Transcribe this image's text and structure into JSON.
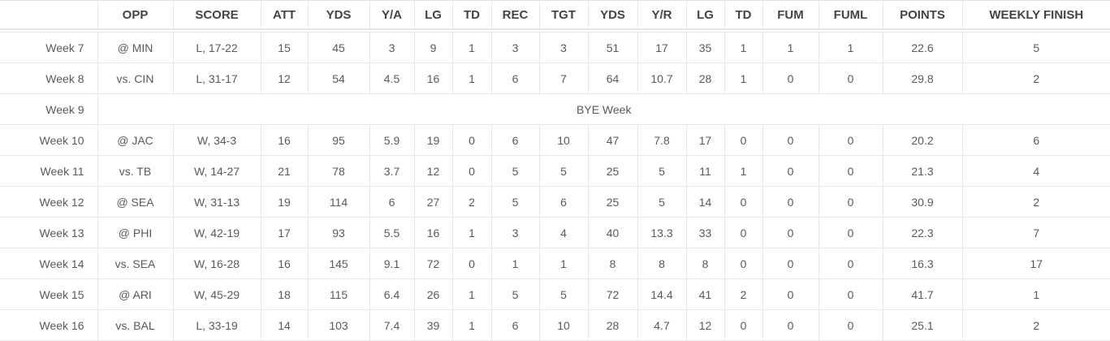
{
  "table": {
    "columns": [
      "",
      "OPP",
      "SCORE",
      "ATT",
      "YDS",
      "Y/A",
      "LG",
      "TD",
      "REC",
      "TGT",
      "YDS",
      "Y/R",
      "LG",
      "TD",
      "FUM",
      "FUML",
      "POINTS",
      "WEEKLY FINISH"
    ],
    "rows": [
      {
        "week": "Week 7",
        "cells": [
          "@ MIN",
          "L, 17-22",
          "15",
          "45",
          "3",
          "9",
          "1",
          "3",
          "3",
          "51",
          "17",
          "35",
          "1",
          "1",
          "1",
          "22.6",
          "5"
        ]
      },
      {
        "week": "Week 8",
        "cells": [
          "vs. CIN",
          "L, 31-17",
          "12",
          "54",
          "4.5",
          "16",
          "1",
          "6",
          "7",
          "64",
          "10.7",
          "28",
          "1",
          "0",
          "0",
          "29.8",
          "2"
        ]
      },
      {
        "week": "Week 9",
        "bye": "BYE Week"
      },
      {
        "week": "Week 10",
        "cells": [
          "@ JAC",
          "W, 34-3",
          "16",
          "95",
          "5.9",
          "19",
          "0",
          "6",
          "10",
          "47",
          "7.8",
          "17",
          "0",
          "0",
          "0",
          "20.2",
          "6"
        ]
      },
      {
        "week": "Week 11",
        "cells": [
          "vs. TB",
          "W, 14-27",
          "21",
          "78",
          "3.7",
          "12",
          "0",
          "5",
          "5",
          "25",
          "5",
          "11",
          "1",
          "0",
          "0",
          "21.3",
          "4"
        ]
      },
      {
        "week": "Week 12",
        "cells": [
          "@ SEA",
          "W, 31-13",
          "19",
          "114",
          "6",
          "27",
          "2",
          "5",
          "6",
          "25",
          "5",
          "14",
          "0",
          "0",
          "0",
          "30.9",
          "2"
        ]
      },
      {
        "week": "Week 13",
        "cells": [
          "@ PHI",
          "W, 42-19",
          "17",
          "93",
          "5.5",
          "16",
          "1",
          "3",
          "4",
          "40",
          "13.3",
          "33",
          "0",
          "0",
          "0",
          "22.3",
          "7"
        ]
      },
      {
        "week": "Week 14",
        "cells": [
          "vs. SEA",
          "W, 16-28",
          "16",
          "145",
          "9.1",
          "72",
          "0",
          "1",
          "1",
          "8",
          "8",
          "8",
          "0",
          "0",
          "0",
          "16.3",
          "17"
        ]
      },
      {
        "week": "Week 15",
        "cells": [
          "@ ARI",
          "W, 45-29",
          "18",
          "115",
          "6.4",
          "26",
          "1",
          "5",
          "5",
          "72",
          "14.4",
          "41",
          "2",
          "0",
          "0",
          "41.7",
          "1"
        ]
      },
      {
        "week": "Week 16",
        "cells": [
          "vs. BAL",
          "L, 33-19",
          "14",
          "103",
          "7.4",
          "39",
          "1",
          "6",
          "10",
          "28",
          "4.7",
          "12",
          "0",
          "0",
          "0",
          "25.1",
          "2"
        ]
      }
    ]
  }
}
